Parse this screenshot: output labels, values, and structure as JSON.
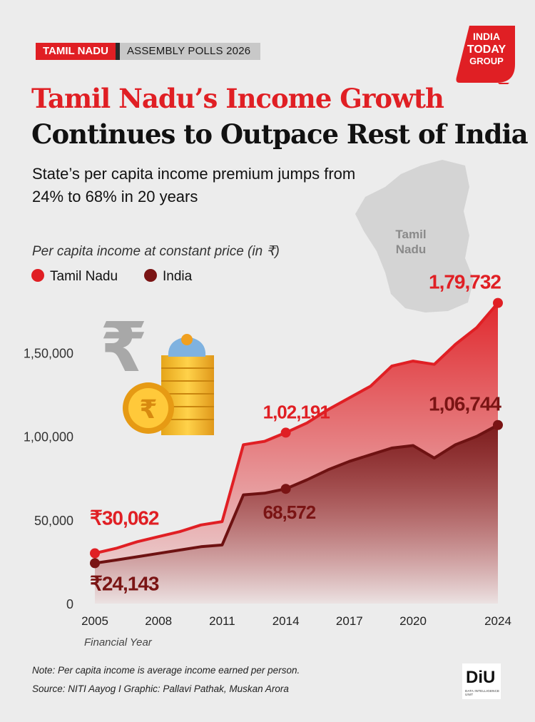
{
  "header": {
    "tag_state": "TAMIL NADU",
    "tag_event": "ASSEMBLY POLLS 2026",
    "logo_line1": "INDIA",
    "logo_line2": "TODAY",
    "logo_line3": "GROUP"
  },
  "title_line1": "Tamil Nadu’s Income Growth",
  "title_line2": "Continues to Outpace Rest of India",
  "subtitle": "State’s per capita income premium jumps from 24% to 68% in 20 years",
  "map_label_1": "Tamil",
  "map_label_2": "Nadu",
  "colors": {
    "tamil_nadu": "#e01f24",
    "india": "#7a1414",
    "background": "#ececec"
  },
  "chart_data": {
    "type": "area",
    "ylabel": "Per capita income at constant price (in ₹)",
    "xlabel": "Financial Year",
    "ylim": [
      0,
      180000
    ],
    "yticks": [
      0,
      50000,
      100000,
      150000
    ],
    "ytick_labels": [
      "0",
      "50,000",
      "1,00,000",
      "1,50,000"
    ],
    "xticks": [
      2005,
      2008,
      2011,
      2014,
      2017,
      2020,
      2024
    ],
    "xlim": [
      2005,
      2024
    ],
    "legend_position": "top-left",
    "grid": false,
    "series": [
      {
        "name": "Tamil Nadu",
        "color": "#e01f24",
        "x": [
          2005,
          2006,
          2007,
          2008,
          2009,
          2010,
          2011,
          2012,
          2013,
          2014,
          2015,
          2016,
          2017,
          2018,
          2019,
          2020,
          2021,
          2022,
          2023,
          2024
        ],
        "y": [
          30062,
          33000,
          37000,
          40000,
          43000,
          47000,
          49000,
          95000,
          97000,
          102191,
          108000,
          116000,
          123000,
          130000,
          142000,
          145000,
          143000,
          155000,
          165000,
          179732
        ]
      },
      {
        "name": "India",
        "color": "#7a1414",
        "x": [
          2005,
          2006,
          2007,
          2008,
          2009,
          2010,
          2011,
          2012,
          2013,
          2014,
          2015,
          2016,
          2017,
          2018,
          2019,
          2020,
          2021,
          2022,
          2023,
          2024
        ],
        "y": [
          24143,
          26000,
          28000,
          30000,
          32000,
          34000,
          35000,
          65000,
          66000,
          68572,
          74000,
          80000,
          85000,
          89000,
          93000,
          94500,
          87000,
          95000,
          100000,
          106744
        ]
      }
    ],
    "annotations": [
      {
        "series": "Tamil Nadu",
        "x": 2005,
        "label": "₹30,062"
      },
      {
        "series": "India",
        "x": 2005,
        "label": "₹24,143"
      },
      {
        "series": "Tamil Nadu",
        "x": 2014,
        "label": "1,02,191"
      },
      {
        "series": "India",
        "x": 2014,
        "label": "68,572"
      },
      {
        "series": "Tamil Nadu",
        "x": 2024,
        "label": "1,79,732"
      },
      {
        "series": "India",
        "x": 2024,
        "label": "1,06,744"
      }
    ]
  },
  "footer": {
    "note": "Note: Per capita income is average income earned per person.",
    "source": "Source: NITI Aayog I Graphic: Pallavi Pathak, Muskan Arora",
    "diu_logo": "DiU",
    "diu_sub": "DATA INTELLIGENCE UNIT"
  }
}
